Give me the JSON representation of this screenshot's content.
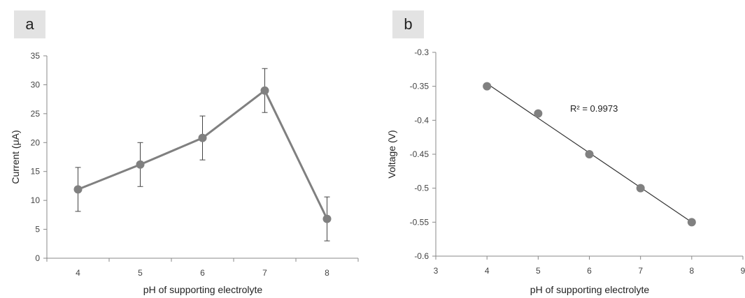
{
  "panels": [
    {
      "label": "a"
    },
    {
      "label": "b"
    }
  ],
  "chart_data": [
    {
      "type": "line",
      "panel": "a",
      "xlabel": "pH of supporting electrolyte",
      "ylabel": "Current (μA)",
      "categories": [
        "4",
        "5",
        "6",
        "7",
        "8"
      ],
      "ylim": [
        0,
        35
      ],
      "yticks": [
        0,
        5,
        10,
        15,
        20,
        25,
        30,
        35
      ],
      "series": [
        {
          "values": [
            11.9,
            16.2,
            20.8,
            29.0,
            6.8
          ],
          "error": [
            3.8,
            3.8,
            3.8,
            3.8,
            3.8
          ],
          "color": "#808080"
        }
      ],
      "grid": false
    },
    {
      "type": "scatter",
      "panel": "b",
      "xlabel": "pH of supporting electrolyte",
      "ylabel": "Voltage (V)",
      "xlim": [
        3,
        9
      ],
      "xticks": [
        3,
        4,
        5,
        6,
        7,
        8,
        9
      ],
      "ylim": [
        -0.6,
        -0.3
      ],
      "yticks": [
        -0.3,
        -0.35,
        -0.4,
        -0.45,
        -0.5,
        -0.55,
        -0.6
      ],
      "series": [
        {
          "x": [
            4,
            5,
            6,
            7,
            8
          ],
          "y": [
            -0.35,
            -0.39,
            -0.45,
            -0.5,
            -0.55
          ],
          "color": "#808080"
        }
      ],
      "trendline": {
        "type": "linear",
        "color": "#333333"
      },
      "annotation": "R² = 0.9973",
      "grid": false
    }
  ]
}
